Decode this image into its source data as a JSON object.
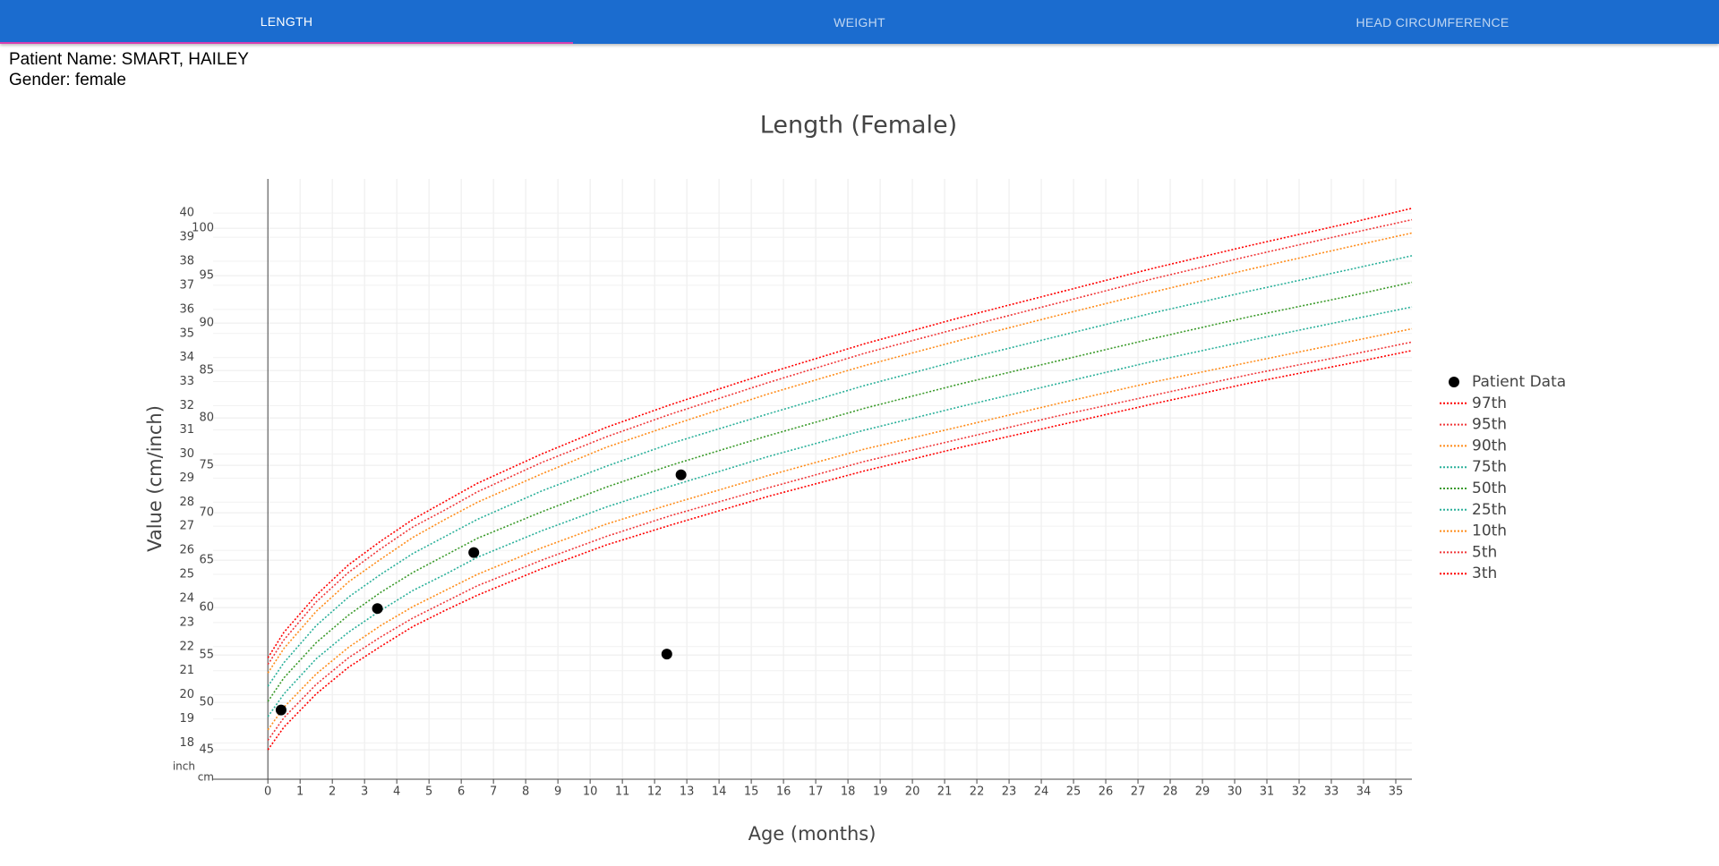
{
  "tabs": [
    "LENGTH",
    "WEIGHT",
    "HEAD CIRCUMFERENCE"
  ],
  "active_tab": 0,
  "patient": {
    "name_line": "Patient Name: SMART, HAILEY",
    "gender_line": "Gender: female"
  },
  "chart_data": {
    "type": "line",
    "title": "Length (Female)",
    "x_label": "Age (months)",
    "y_label": "Value (cm/inch)",
    "xlim": [
      -1.7,
      35.5
    ],
    "ylim": [
      41.9,
      105.2
    ],
    "xticks": [
      0,
      1,
      2,
      3,
      4,
      5,
      6,
      7,
      8,
      9,
      10,
      11,
      12,
      13,
      14,
      15,
      16,
      17,
      18,
      19,
      20,
      21,
      22,
      23,
      24,
      25,
      26,
      27,
      28,
      29,
      30,
      31,
      32,
      33,
      34,
      35
    ],
    "yticks": [
      45,
      50,
      55,
      60,
      65,
      70,
      75,
      80,
      85,
      90,
      95,
      100
    ],
    "ytick_unit": "cm",
    "inch_ticks": [
      {
        "value": 45.72,
        "label": "18"
      },
      {
        "value": 48.26,
        "label": "19"
      },
      {
        "value": 50.8,
        "label": "20"
      },
      {
        "value": 53.34,
        "label": "21"
      },
      {
        "value": 55.88,
        "label": "22"
      },
      {
        "value": 58.42,
        "label": "23"
      },
      {
        "value": 60.96,
        "label": "24"
      },
      {
        "value": 63.5,
        "label": "25"
      },
      {
        "value": 66.04,
        "label": "26"
      },
      {
        "value": 68.58,
        "label": "27"
      },
      {
        "value": 71.12,
        "label": "28"
      },
      {
        "value": 73.66,
        "label": "29"
      },
      {
        "value": 76.2,
        "label": "30"
      },
      {
        "value": 78.74,
        "label": "31"
      },
      {
        "value": 81.28,
        "label": "32"
      },
      {
        "value": 83.82,
        "label": "33"
      },
      {
        "value": 86.36,
        "label": "34"
      },
      {
        "value": 88.9,
        "label": "35"
      },
      {
        "value": 91.44,
        "label": "36"
      },
      {
        "value": 93.98,
        "label": "37"
      },
      {
        "value": 96.52,
        "label": "38"
      },
      {
        "value": 99.06,
        "label": "39"
      },
      {
        "value": 101.6,
        "label": "40"
      }
    ],
    "inch_tick_unit": "inch",
    "grid": true,
    "legend": "right",
    "x": [
      0,
      0.5,
      1.5,
      2.5,
      3.5,
      4.5,
      5.5,
      6.5,
      8.5,
      10.5,
      12.5,
      15.5,
      18.5,
      21.5,
      24.5,
      27.5,
      30.5,
      33.5,
      35.5
    ],
    "series": [
      {
        "name": "Patient Data",
        "color": "#000000",
        "mode": "markers",
        "x": [
          0.41,
          3.4,
          6.39,
          12.38,
          12.82
        ],
        "values": [
          49.2,
          59.9,
          65.8,
          55.1,
          74.0
        ]
      },
      {
        "name": "97th",
        "color": "#ff0000",
        "mode": "lines",
        "values": [
          54.7,
          57.4,
          61.3,
          64.5,
          67.0,
          69.3,
          71.2,
          73.1,
          76.2,
          79.0,
          81.4,
          84.7,
          87.8,
          90.6,
          93.2,
          95.8,
          98.2,
          100.5,
          102.1
        ]
      },
      {
        "name": "95th",
        "color": "#f0383a",
        "mode": "lines",
        "values": [
          54.0,
          56.6,
          60.6,
          63.7,
          66.2,
          68.5,
          70.3,
          72.2,
          75.3,
          78.0,
          80.4,
          83.7,
          86.8,
          89.5,
          92.1,
          94.7,
          97.1,
          99.4,
          100.9
        ]
      },
      {
        "name": "90th",
        "color": "#ff8c1a",
        "mode": "lines",
        "values": [
          53.1,
          55.7,
          59.6,
          62.7,
          65.1,
          67.4,
          69.3,
          71.1,
          74.1,
          76.9,
          79.2,
          82.5,
          85.5,
          88.2,
          90.8,
          93.3,
          95.7,
          98.0,
          99.5
        ]
      },
      {
        "name": "75th",
        "color": "#2ab09a",
        "mode": "lines",
        "values": [
          51.7,
          54.2,
          58.1,
          61.1,
          63.5,
          65.7,
          67.5,
          69.3,
          72.3,
          74.9,
          77.3,
          80.4,
          83.4,
          86.1,
          88.6,
          91.1,
          93.4,
          95.6,
          97.1
        ]
      },
      {
        "name": "50th",
        "color": "#3a9a2a",
        "mode": "lines",
        "values": [
          50.1,
          52.6,
          56.3,
          59.2,
          61.6,
          63.7,
          65.5,
          67.3,
          70.1,
          72.7,
          75.0,
          78.1,
          81.0,
          83.6,
          86.0,
          88.4,
          90.7,
          92.8,
          94.3
        ]
      },
      {
        "name": "25th",
        "color": "#2ab09a",
        "mode": "lines",
        "values": [
          48.5,
          50.9,
          54.6,
          57.4,
          59.7,
          61.8,
          63.5,
          65.3,
          68.1,
          70.6,
          72.8,
          75.9,
          78.7,
          81.2,
          83.6,
          86.0,
          88.2,
          90.3,
          91.7
        ]
      },
      {
        "name": "10th",
        "color": "#ff8c1a",
        "mode": "lines",
        "values": [
          47.1,
          49.5,
          53.0,
          55.8,
          58.1,
          60.1,
          61.8,
          63.5,
          66.3,
          68.8,
          70.9,
          73.9,
          76.7,
          79.1,
          81.5,
          83.8,
          85.9,
          88.0,
          89.4
        ]
      },
      {
        "name": "5th",
        "color": "#f0383a",
        "mode": "lines",
        "values": [
          46.0,
          48.4,
          51.9,
          54.7,
          56.9,
          58.9,
          60.6,
          62.3,
          65.0,
          67.5,
          69.7,
          72.6,
          75.4,
          77.8,
          80.2,
          82.4,
          84.6,
          86.6,
          88.0
        ]
      },
      {
        "name": "3th",
        "color": "#ff0000",
        "mode": "lines",
        "values": [
          45.0,
          47.4,
          50.9,
          53.7,
          55.9,
          58.0,
          59.7,
          61.3,
          64.1,
          66.6,
          68.7,
          71.7,
          74.4,
          76.9,
          79.2,
          81.5,
          83.7,
          85.7,
          87.1
        ]
      }
    ]
  }
}
